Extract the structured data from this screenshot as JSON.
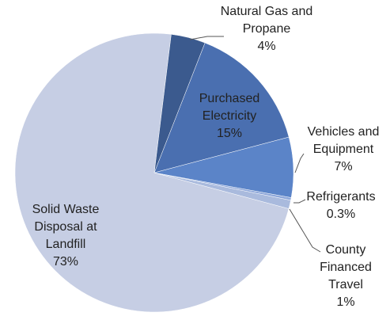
{
  "chart_data": {
    "type": "pie",
    "categories": [
      "Natural Gas and Propane",
      "Purchased Electricity",
      "Vehicles and Equipment",
      "Refrigerants",
      "County Financed Travel",
      "Solid Waste Disposal at Landfill"
    ],
    "values": [
      4,
      15,
      7,
      0.3,
      1,
      73
    ],
    "value_labels": [
      "4%",
      "15%",
      "7%",
      "0.3%",
      "1%",
      "73%"
    ],
    "colors": [
      "#3b5a8e",
      "#4a6fb0",
      "#5b84c8",
      "#8ea7d9",
      "#a9badd",
      "#c6cee4"
    ]
  }
}
